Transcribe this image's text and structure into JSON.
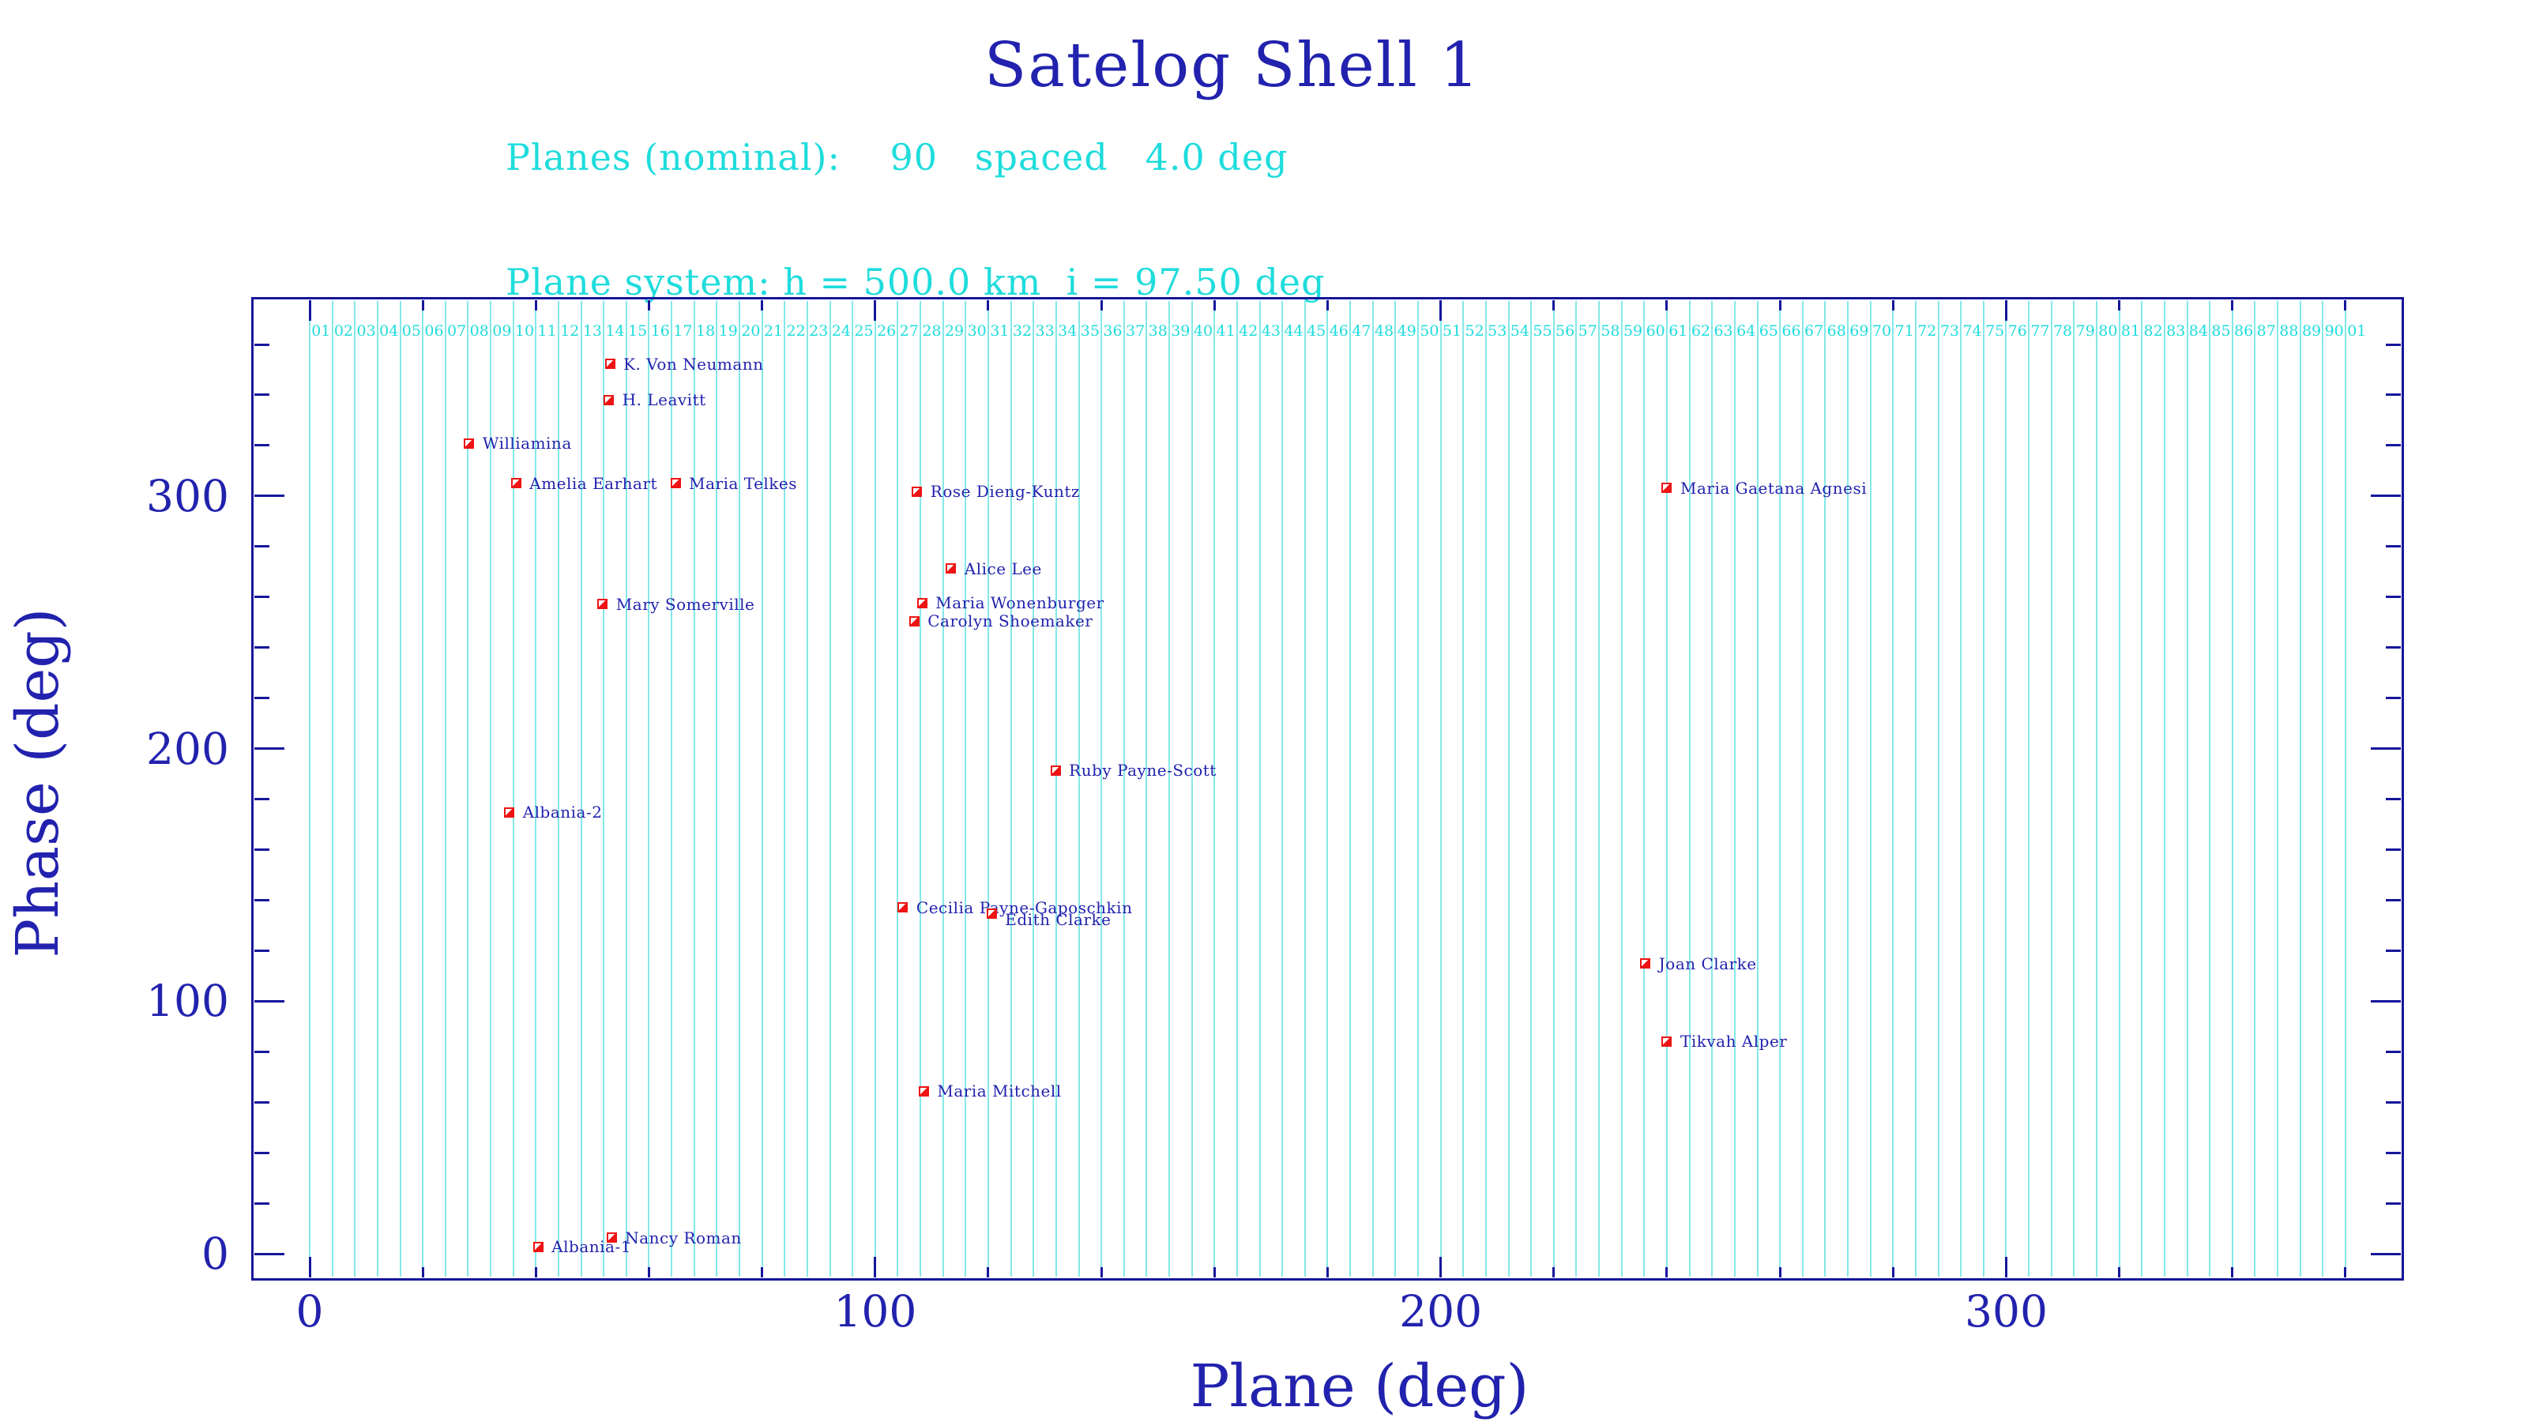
{
  "title": "Satelog Shell 1",
  "subtitle_planes": "Planes (nominal):    90   spaced   4.0 deg",
  "subtitle_plane_system": "Plane system: h = 500.0 km  i = 97.50 deg",
  "colors": {
    "blue_text": "#2222ae",
    "navy_frame": "#16169b",
    "marker_red": "#ee1414",
    "cyan_text": "#1fdcdc",
    "grid_cyan": "#85e8e8"
  },
  "chart_data": {
    "type": "scatter",
    "title": "Satelog Shell 1",
    "xlabel": "Plane (deg)",
    "ylabel": "Phase (deg)",
    "xlim": [
      -10,
      370
    ],
    "ylim": [
      -10,
      378
    ],
    "xticks": [
      0,
      100,
      200,
      300
    ],
    "yticks": [
      0,
      100,
      200,
      300
    ],
    "minor_tick_step_deg": 20,
    "tick_span_deg": 360,
    "grid": "vertical cyan line at every nominal plane (4 deg spacing), 91 lines including 360-deg wrap",
    "plane_count": 90,
    "plane_spacing_deg": 4.0,
    "plane_labels": [
      "01",
      "02",
      "03",
      "04",
      "05",
      "06",
      "07",
      "08",
      "09",
      "10",
      "11",
      "12",
      "13",
      "14",
      "15",
      "16",
      "17",
      "18",
      "19",
      "20",
      "21",
      "22",
      "23",
      "24",
      "25",
      "26",
      "27",
      "28",
      "29",
      "30",
      "31",
      "32",
      "33",
      "34",
      "35",
      "36",
      "37",
      "38",
      "39",
      "40",
      "41",
      "42",
      "43",
      "44",
      "45",
      "46",
      "47",
      "48",
      "49",
      "50",
      "51",
      "52",
      "53",
      "54",
      "55",
      "56",
      "57",
      "58",
      "59",
      "60",
      "61",
      "62",
      "63",
      "64",
      "65",
      "66",
      "67",
      "68",
      "69",
      "70",
      "71",
      "72",
      "73",
      "74",
      "75",
      "76",
      "77",
      "78",
      "79",
      "80",
      "81",
      "82",
      "83",
      "84",
      "85",
      "86",
      "87",
      "88",
      "89",
      "90",
      "01"
    ],
    "points": [
      {
        "name": "K. Von Neumann",
        "plane": 53.1,
        "phase": 352.2
      },
      {
        "name": "H. Leavitt",
        "plane": 52.9,
        "phase": 338.1
      },
      {
        "name": "Williamina",
        "plane": 28.2,
        "phase": 320.9
      },
      {
        "name": "Amelia Earhart",
        "plane": 36.5,
        "phase": 305.0
      },
      {
        "name": "Maria Telkes",
        "plane": 64.7,
        "phase": 305.0
      },
      {
        "name": "Rose Dieng-Kuntz",
        "plane": 107.4,
        "phase": 301.8
      },
      {
        "name": "Maria Gaetana Agnesi",
        "plane": 240.0,
        "phase": 303.1
      },
      {
        "name": "Alice Lee",
        "plane": 113.4,
        "phase": 271.2
      },
      {
        "name": "Mary Somerville",
        "plane": 51.8,
        "phase": 257.1
      },
      {
        "name": "Maria Wonenburger",
        "plane": 108.3,
        "phase": 257.7
      },
      {
        "name": "Carolyn Shoemaker",
        "plane": 106.9,
        "phase": 250.5
      },
      {
        "name": "Ruby Payne-Scott",
        "plane": 131.9,
        "phase": 191.4
      },
      {
        "name": "Albania-2",
        "plane": 35.3,
        "phase": 174.8
      },
      {
        "name": "Cecilia Payne-Gaposchkin",
        "plane": 104.9,
        "phase": 137.0
      },
      {
        "name": "Edith Clarke",
        "plane": 120.6,
        "phase": 134.8,
        "label_dy": 8
      },
      {
        "name": "Joan Clarke",
        "plane": 236.2,
        "phase": 114.8
      },
      {
        "name": "Tikvah Alper",
        "plane": 240.0,
        "phase": 84.1
      },
      {
        "name": "Maria Mitchell",
        "plane": 108.6,
        "phase": 64.4
      },
      {
        "name": "Albania-1",
        "plane": 40.4,
        "phase": 2.8
      },
      {
        "name": "Nancy Roman",
        "plane": 53.4,
        "phase": 6.3
      }
    ]
  }
}
